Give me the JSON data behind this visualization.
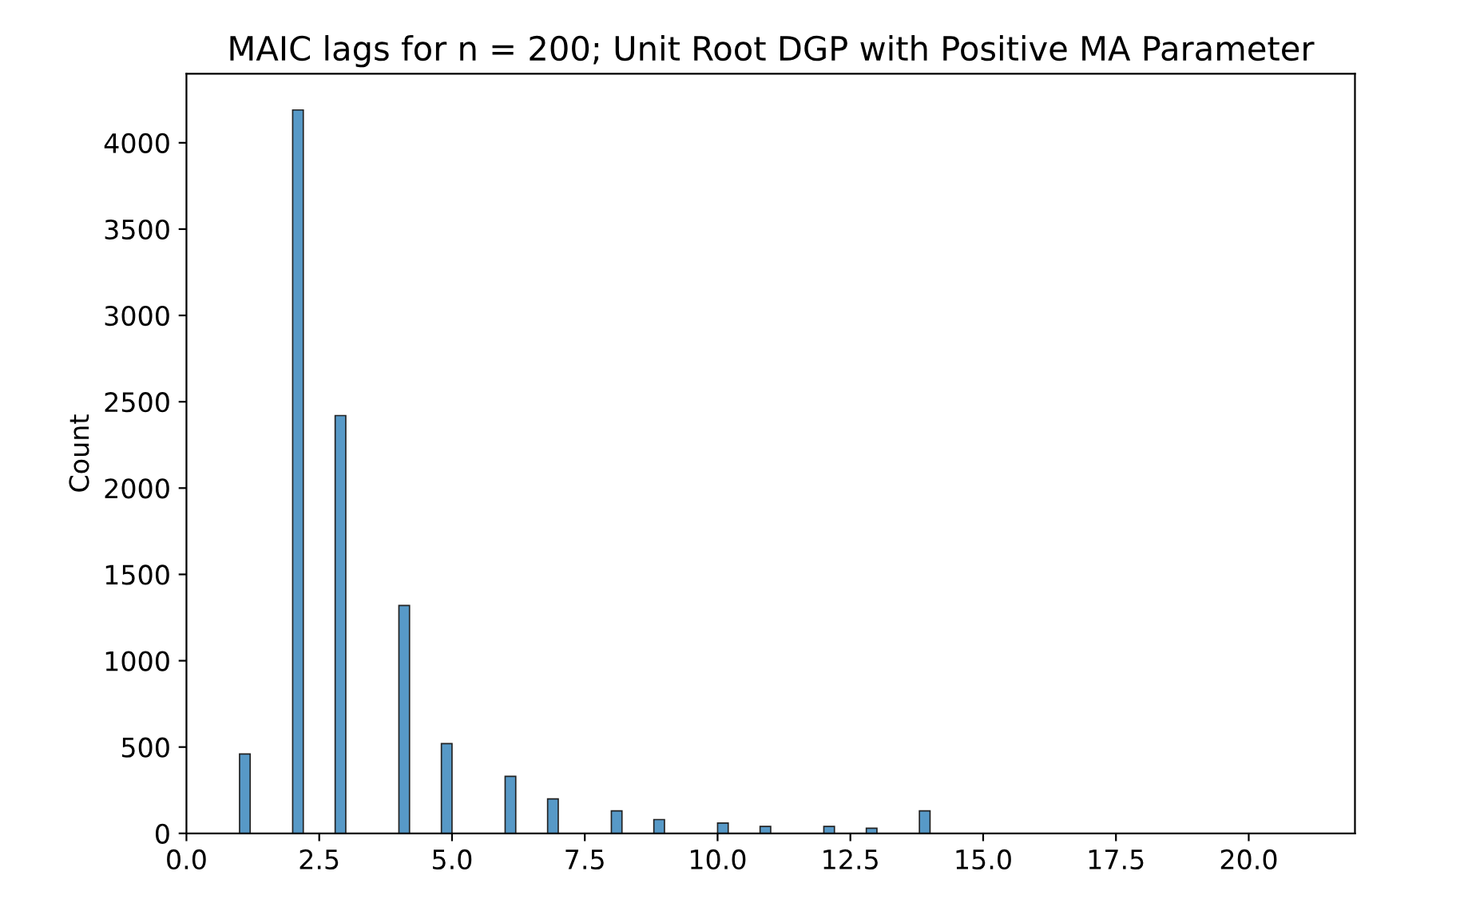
{
  "chart_data": {
    "type": "histogram",
    "title": "MAIC lags for n = 200; Unit Root DGP with Positive MA Parameter",
    "ylabel": "Count",
    "bins": [
      1.0,
      1.2,
      2.0,
      2.2,
      2.8,
      3.0,
      4.0,
      4.2,
      4.8,
      5.0,
      6.0,
      6.2,
      6.8,
      7.0,
      8.0,
      8.2,
      8.8,
      9.0,
      10.0,
      10.2,
      10.8,
      11.0,
      12.0,
      12.2,
      12.8,
      13.0,
      13.8,
      14.0
    ],
    "values": [
      460,
      0,
      4190,
      0,
      2420,
      0,
      1320,
      0,
      520,
      0,
      330,
      0,
      200,
      0,
      130,
      0,
      80,
      0,
      60,
      0,
      40,
      0,
      40,
      0,
      30,
      0,
      130
    ],
    "color": "#5799c7",
    "xlim": [
      0,
      22
    ],
    "ylim": [
      0,
      4400
    ],
    "xticks": [
      {
        "value": 0,
        "label": "0.0"
      },
      {
        "value": 2.5,
        "label": "2.5"
      },
      {
        "value": 5,
        "label": "5.0"
      },
      {
        "value": 7.5,
        "label": "7.5"
      },
      {
        "value": 10,
        "label": "10.0"
      },
      {
        "value": 12.5,
        "label": "12.5"
      },
      {
        "value": 15,
        "label": "15.0"
      },
      {
        "value": 17.5,
        "label": "17.5"
      },
      {
        "value": 20,
        "label": "20.0"
      }
    ],
    "yticks": [
      0,
      500,
      1000,
      1500,
      2000,
      2500,
      3000,
      3500,
      4000
    ],
    "grid": false
  }
}
